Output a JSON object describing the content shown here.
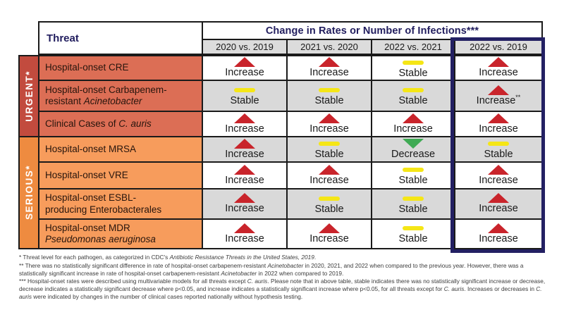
{
  "chart_data": {
    "type": "table",
    "title": "Change in Rates or Number of Infections***",
    "columns": [
      "Threat",
      "2020 vs. 2019",
      "2021 vs. 2020",
      "2022 vs. 2021",
      "2022 vs. 2019"
    ],
    "rows": [
      {
        "threat_level": "URGENT*",
        "threat": "Hospital-onset CRE",
        "values": [
          "Increase",
          "Increase",
          "Stable",
          "Increase"
        ]
      },
      {
        "threat_level": "URGENT*",
        "threat": "Hospital-onset Carbapenem-resistant Acinetobacter",
        "values": [
          "Stable",
          "Stable",
          "Stable",
          "Increase**"
        ]
      },
      {
        "threat_level": "URGENT*",
        "threat": "Clinical Cases of C. auris",
        "values": [
          "Increase",
          "Increase",
          "Increase",
          "Increase"
        ]
      },
      {
        "threat_level": "SERIOUS*",
        "threat": "Hospital-onset MRSA",
        "values": [
          "Increase",
          "Stable",
          "Decrease",
          "Stable"
        ]
      },
      {
        "threat_level": "SERIOUS*",
        "threat": "Hospital-onset VRE",
        "values": [
          "Increase",
          "Increase",
          "Stable",
          "Increase"
        ]
      },
      {
        "threat_level": "SERIOUS*",
        "threat": "Hospital-onset ESBL-producing Enterobacterales",
        "values": [
          "Increase",
          "Stable",
          "Stable",
          "Increase"
        ]
      },
      {
        "threat_level": "SERIOUS*",
        "threat": "Hospital-onset MDR Pseudomonas aeruginosa",
        "values": [
          "Increase",
          "Increase",
          "Stable",
          "Increase"
        ]
      }
    ],
    "legend": {
      "increase": "red up triangle",
      "stable": "yellow bar",
      "decrease": "green down triangle",
      "highlighted_column": "2022 vs. 2019"
    }
  },
  "colors": {
    "navy": "#211d5e",
    "box-navy": "#232063",
    "border-black": "#1a1a1a",
    "increase": "#c9242b",
    "stable": "#f5e616",
    "decrease": "#3faa54",
    "urgent-strip": "#c24b3e",
    "urgent-row": "#dc6e55",
    "serious-strip": "#ee8b40",
    "serious-row": "#f79c5c",
    "cell-gray": "#dcdcdc",
    "cell-alt-gray": "#d9d9d9"
  },
  "table": {
    "header": {
      "threat": "Threat",
      "change": "Change in Rates or Number of Infections***",
      "columns": [
        "2020 vs. 2019",
        "2021 vs. 2020",
        "2022 vs. 2021",
        "2022 vs. 2019"
      ]
    },
    "groups": {
      "urgent": "URGENT*",
      "serious": "SERIOUS*"
    },
    "icon_names": {
      "increase": "increase-up-triangle-icon",
      "stable": "stable-bar-icon",
      "decrease": "decrease-down-triangle-icon"
    },
    "rows": [
      {
        "group": "urgent",
        "segments": [
          {
            "t": "Hospital-onset CRE"
          }
        ],
        "changes": [
          {
            "kind": "increase",
            "label": "Increase",
            "sup": ""
          },
          {
            "kind": "increase",
            "label": "Increase",
            "sup": ""
          },
          {
            "kind": "stable",
            "label": "Stable",
            "sup": ""
          },
          {
            "kind": "increase",
            "label": "Increase",
            "sup": ""
          }
        ]
      },
      {
        "group": "urgent",
        "segments": [
          {
            "t": "Hospital-onset Carbapenem-"
          },
          {
            "br": true
          },
          {
            "t": "resistant "
          },
          {
            "t": "Acinetobacter",
            "i": true
          }
        ],
        "changes": [
          {
            "kind": "stable",
            "label": "Stable",
            "sup": ""
          },
          {
            "kind": "stable",
            "label": "Stable",
            "sup": ""
          },
          {
            "kind": "stable",
            "label": "Stable",
            "sup": ""
          },
          {
            "kind": "increase",
            "label": "Increase",
            "sup": "**"
          }
        ]
      },
      {
        "group": "urgent",
        "segments": [
          {
            "t": "Clinical Cases of "
          },
          {
            "t": "C. auris",
            "i": true
          }
        ],
        "changes": [
          {
            "kind": "increase",
            "label": "Increase",
            "sup": ""
          },
          {
            "kind": "increase",
            "label": "Increase",
            "sup": ""
          },
          {
            "kind": "increase",
            "label": "Increase",
            "sup": ""
          },
          {
            "kind": "increase",
            "label": "Increase",
            "sup": ""
          }
        ]
      },
      {
        "group": "serious",
        "segments": [
          {
            "t": "Hospital-onset MRSA"
          }
        ],
        "changes": [
          {
            "kind": "increase",
            "label": "Increase",
            "sup": ""
          },
          {
            "kind": "stable",
            "label": "Stable",
            "sup": ""
          },
          {
            "kind": "decrease",
            "label": "Decrease",
            "sup": ""
          },
          {
            "kind": "stable",
            "label": "Stable",
            "sup": ""
          }
        ]
      },
      {
        "group": "serious",
        "segments": [
          {
            "t": "Hospital-onset VRE"
          }
        ],
        "changes": [
          {
            "kind": "increase",
            "label": "Increase",
            "sup": ""
          },
          {
            "kind": "increase",
            "label": "Increase",
            "sup": ""
          },
          {
            "kind": "stable",
            "label": "Stable",
            "sup": ""
          },
          {
            "kind": "increase",
            "label": "Increase",
            "sup": ""
          }
        ]
      },
      {
        "group": "serious",
        "segments": [
          {
            "t": "Hospital-onset ESBL-"
          },
          {
            "br": true
          },
          {
            "t": "producing Enterobacterales"
          }
        ],
        "changes": [
          {
            "kind": "increase",
            "label": "Increase",
            "sup": ""
          },
          {
            "kind": "stable",
            "label": "Stable",
            "sup": ""
          },
          {
            "kind": "stable",
            "label": "Stable",
            "sup": ""
          },
          {
            "kind": "increase",
            "label": "Increase",
            "sup": ""
          }
        ]
      },
      {
        "group": "serious",
        "segments": [
          {
            "t": "Hospital-onset MDR"
          },
          {
            "br": true
          },
          {
            "t": "Pseudomonas aeruginosa",
            "i": true
          }
        ],
        "changes": [
          {
            "kind": "increase",
            "label": "Increase",
            "sup": ""
          },
          {
            "kind": "increase",
            "label": "Increase",
            "sup": ""
          },
          {
            "kind": "stable",
            "label": "Stable",
            "sup": ""
          },
          {
            "kind": "increase",
            "label": "Increase",
            "sup": ""
          }
        ]
      }
    ]
  },
  "footnotes": [
    {
      "segments": [
        {
          "t": "* Threat level for each pathogen, as categorized in CDC's "
        },
        {
          "t": "Antibiotic Resistance Threats in the United States, 2019",
          "i": true
        },
        {
          "t": "."
        }
      ]
    },
    {
      "segments": [
        {
          "t": "** There was no statistically significant difference in rate of hospital-onset carbapenem-resistant "
        },
        {
          "t": "Acinetobacter",
          "i": true
        },
        {
          "t": " in 2020, 2021, and 2022 when compared to the previous year. However, there was a statistically significant increase in rate of hospital-onset carbapenem-resistant "
        },
        {
          "t": "Acinetobacter",
          "i": true
        },
        {
          "t": " in 2022 when compared to 2019."
        }
      ]
    },
    {
      "segments": [
        {
          "t": "*** Hospital-onset rates were described using multivariable models for all threats except "
        },
        {
          "t": "C. auris",
          "i": true
        },
        {
          "t": ". Please note that in above table, stable indicates there was no statistically significant increase or decrease, decrease indicates a statistically significant decrease where p<0.05, and increase indicates a statistically significant increase where p<0.05, for all threats except for "
        },
        {
          "t": "C. auris",
          "i": true
        },
        {
          "t": ". Increases or decreases in "
        },
        {
          "t": "C. auris",
          "i": true
        },
        {
          "t": " were indicated by changes in the number of clinical cases reported nationally without hypothesis testing."
        }
      ]
    }
  ]
}
